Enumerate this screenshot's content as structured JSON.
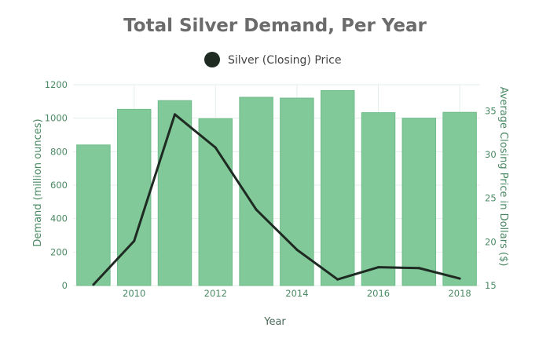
{
  "chart_data": {
    "type": "bar",
    "title": "Total Silver Demand, Per Year",
    "xlabel": "Year",
    "ylabel": "Demand (million ounces)",
    "y2label": "Average Closing Price in Dollars ($)",
    "legend": {
      "label": "Silver (Closing) Price",
      "placement": "top-center"
    },
    "x": [
      2009,
      2010,
      2011,
      2012,
      2013,
      2014,
      2015,
      2016,
      2017,
      2018
    ],
    "x_tick_labels": [
      "2010",
      "2012",
      "2014",
      "2016",
      "2018"
    ],
    "x_tick_values": [
      2010,
      2012,
      2014,
      2016,
      2018
    ],
    "xlim": [
      2008.5,
      2018.5
    ],
    "series": [
      {
        "type": "bar",
        "axis": "left",
        "values": [
          840,
          1053,
          1105,
          997,
          1125,
          1120,
          1165,
          1033,
          1000,
          1035
        ],
        "color": "#82c99a"
      },
      {
        "name": "Silver (Closing) Price",
        "type": "line",
        "axis": "right",
        "values": [
          15.1,
          20.1,
          34.6,
          30.8,
          23.7,
          19.1,
          15.7,
          17.1,
          17.0,
          15.8
        ],
        "color": "#1e2a22"
      }
    ],
    "ylim": [
      0,
      1200
    ],
    "y_ticks": [
      0,
      200,
      400,
      600,
      800,
      1000,
      1200
    ],
    "y2lim": [
      15,
      38
    ],
    "y2_ticks": [
      15,
      20,
      25,
      30,
      35
    ],
    "grid": true
  }
}
